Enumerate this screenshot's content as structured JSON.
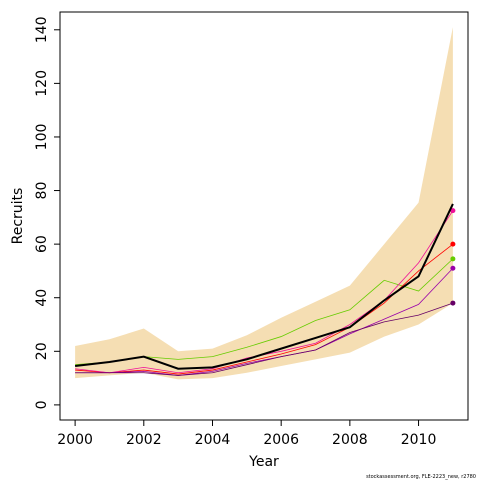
{
  "chart_data": {
    "type": "line",
    "x_label": "Year",
    "y_label": "Recruits",
    "footnote": "stockassessment.org, FLE-2223_new, r2780",
    "x": [
      2000,
      2001,
      2002,
      2003,
      2004,
      2005,
      2006,
      2007,
      2008,
      2009,
      2010,
      2011
    ],
    "xlim": [
      1999.56,
      2011.44
    ],
    "xticks": [
      2000,
      2002,
      2004,
      2006,
      2008,
      2010
    ],
    "ylim": [
      -5.64,
      146.64
    ],
    "yticks": [
      0,
      20,
      40,
      60,
      80,
      100,
      120,
      140
    ],
    "band": {
      "color": "#f5deb3",
      "upper": [
        22,
        24.5,
        28.5,
        20,
        21,
        26,
        32.5,
        38.5,
        44.5,
        60,
        75.5,
        141
      ],
      "lower": [
        10,
        11,
        12,
        9.5,
        10,
        12,
        14.5,
        17,
        19.5,
        25.5,
        30,
        38
      ]
    },
    "series": [
      {
        "color": "#66cc00",
        "values": [
          15,
          16,
          18,
          17,
          18,
          21.5,
          25.5,
          31.5,
          35.5,
          46.5,
          42.5,
          54.5
        ]
      },
      {
        "color": "#ff0000",
        "values": [
          13,
          12,
          13,
          11.5,
          13,
          16,
          19,
          22.5,
          29,
          38,
          50,
          60
        ]
      },
      {
        "color": "#ee1199",
        "values": [
          13.5,
          12,
          14,
          12,
          13.5,
          17.5,
          20,
          23,
          30,
          39,
          53,
          72.5
        ]
      },
      {
        "color": "#9900aa",
        "values": [
          12,
          12,
          12.5,
          11,
          12.5,
          15.5,
          18,
          20.5,
          26.5,
          32,
          37.5,
          51
        ]
      },
      {
        "color": "#660066",
        "values": [
          12,
          12,
          12,
          11,
          12,
          15,
          18,
          20.5,
          27,
          31,
          33.5,
          38
        ]
      },
      {
        "color": "#000000",
        "width": 2,
        "values": [
          14.5,
          16,
          18,
          13.5,
          14,
          17,
          21,
          25,
          29,
          39,
          48,
          75
        ]
      }
    ]
  }
}
